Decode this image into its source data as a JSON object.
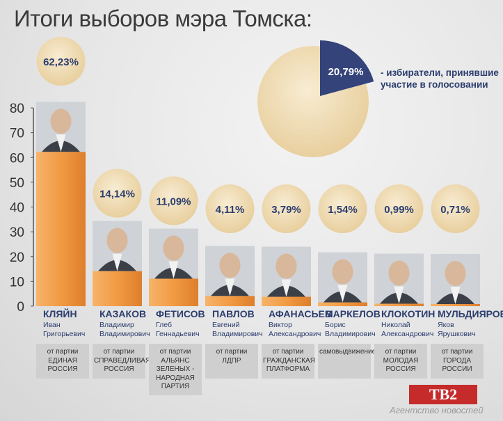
{
  "title": "Итоги выборов мэра Томска:",
  "colors": {
    "bar": "#f29e4c",
    "bar_dark": "#d9782a",
    "bubble": "#efdcb6",
    "candidate_name": "#2c3e6f",
    "turnout": "#34437a"
  },
  "turnout": {
    "value_label": "20,79%",
    "value": 20.79,
    "description": "- избиратели, принявшие участие в голосовании"
  },
  "chart_data": {
    "type": "bar",
    "title": "Итоги выборов мэра Томска:",
    "ylim": [
      0,
      80
    ],
    "yticks": [
      "0",
      "10",
      "20",
      "30",
      "40",
      "50",
      "60",
      "70",
      "80"
    ],
    "grid": false,
    "categories": [
      "КЛЯЙН",
      "КАЗАКОВ",
      "ФЕТИСОВ",
      "ПАВЛОВ",
      "АФАНАСЬЕВ",
      "МАРКЕЛОВ",
      "КЛОКОТИН",
      "МУЛЬДИЯРОВ"
    ],
    "values": [
      62.23,
      14.14,
      11.09,
      4.11,
      3.79,
      1.54,
      0.99,
      0.71
    ],
    "value_labels": [
      "62,23%",
      "14,14%",
      "11,09%",
      "4,11%",
      "3,79%",
      "1,54%",
      "0,99%",
      "0,71%"
    ]
  },
  "candidates": [
    {
      "surname": "КЛЯЙН",
      "first": "Иван",
      "patronymic": "Григорьевич",
      "party": [
        "от партии",
        "ЕДИНАЯ",
        "РОССИЯ"
      ]
    },
    {
      "surname": "КАЗАКОВ",
      "first": "Владимир",
      "patronymic": "Владимирович",
      "party": [
        "от партии",
        "СПРАВЕДЛИВАЯ",
        "РОССИЯ"
      ]
    },
    {
      "surname": "ФЕТИСОВ",
      "first": "Глеб",
      "patronymic": "Геннадьевич",
      "party": [
        "от партии",
        "АЛЬЯНС",
        "ЗЕЛЕНЫХ -",
        "НАРОДНАЯ",
        "ПАРТИЯ"
      ]
    },
    {
      "surname": "ПАВЛОВ",
      "first": "Евгений",
      "patronymic": "Владимирович",
      "party": [
        "от партии",
        "ЛДПР"
      ]
    },
    {
      "surname": "АФАНАСЬЕВ",
      "first": "Виктор",
      "patronymic": "Александрович",
      "party": [
        "от партии",
        "ГРАЖДАНСКАЯ",
        "ПЛАТФОРМА"
      ]
    },
    {
      "surname": "МАРКЕЛОВ",
      "first": "Борис",
      "patronymic": "Владимирович",
      "party": [
        "самовыдвижение"
      ]
    },
    {
      "surname": "КЛОКОТИН",
      "first": "Николай",
      "patronymic": "Александрович",
      "party": [
        "от партии",
        "МОЛОДАЯ",
        "РОССИЯ"
      ]
    },
    {
      "surname": "МУЛЬДИЯРОВ",
      "first": "Яков",
      "patronymic": "Ярушкович",
      "party": [
        "от партии",
        "ГОРОДА",
        "РОССИИ"
      ]
    }
  ],
  "logo": {
    "text": "ТВ2",
    "agency": "Агентство новостей"
  }
}
